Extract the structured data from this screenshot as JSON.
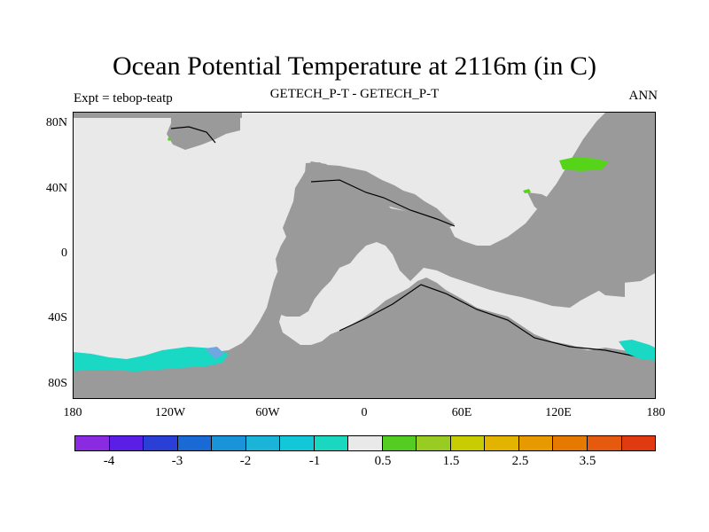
{
  "title": "Ocean Potential Temperature at 2116m (in C)",
  "subtitle": "GETECH_P-T - GETECH_P-T",
  "experiment_label": "Expt = tebop-teatp",
  "season_label": "ANN",
  "y_ticks": [
    "80N",
    "40N",
    "0",
    "40S",
    "80S"
  ],
  "x_ticks": [
    "180",
    "120W",
    "60W",
    "0",
    "60E",
    "120E",
    "180"
  ],
  "colorbar": {
    "colors": [
      "#8a2be2",
      "#5a1ee6",
      "#2a3fd6",
      "#1a6ad6",
      "#1a94d9",
      "#1ab4d9",
      "#12c8d8",
      "#1ad8c0",
      "#e9e9e9",
      "#55cc22",
      "#99cc22",
      "#c8cc00",
      "#e2b400",
      "#e69a00",
      "#e67a00",
      "#e65a10",
      "#e03a10"
    ],
    "labels": [
      "-4",
      "-3",
      "-2",
      "-1",
      "0.5",
      "1.5",
      "2.5",
      "3.5"
    ]
  },
  "colors": {
    "land": "#9a9a9a",
    "ocean_near_zero": "#e9e9e9",
    "cold_anomaly": "#19d9c4",
    "warm_anomaly": "#55d41a"
  }
}
